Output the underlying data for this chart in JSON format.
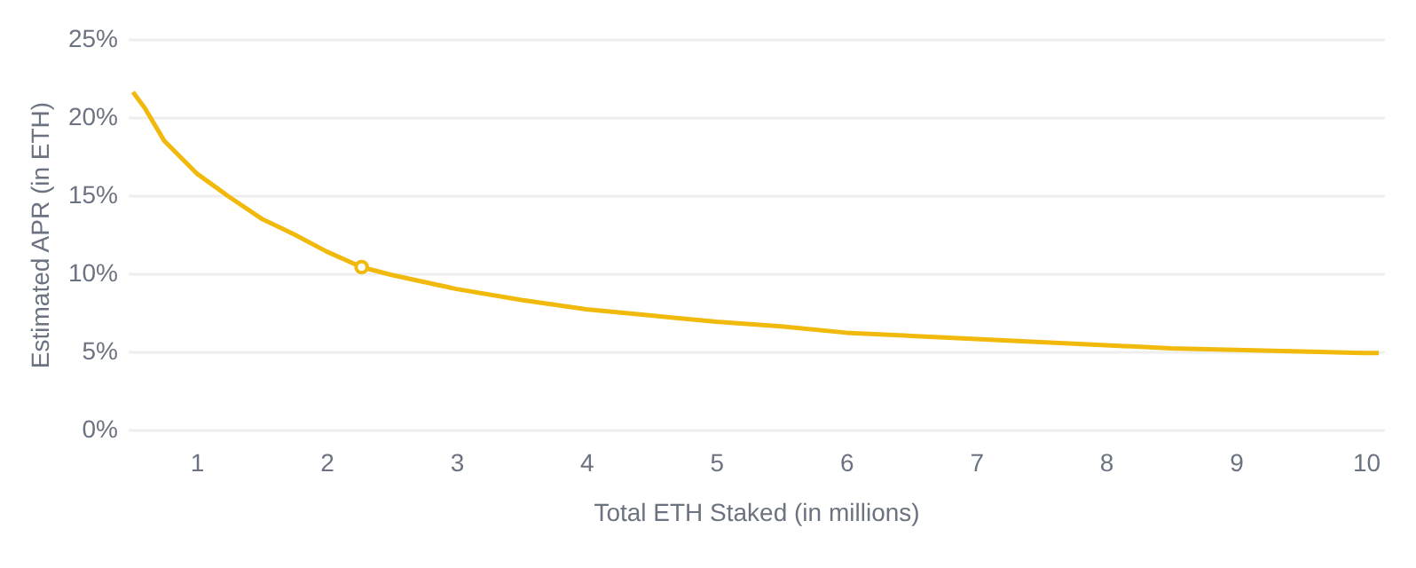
{
  "chart_data": {
    "type": "line",
    "xlabel": "Total ETH Staked (in millions)",
    "ylabel": "Estimated APR (in ETH)",
    "xlim": [
      0.47,
      10.14
    ],
    "xticks": [
      1,
      2,
      3,
      4,
      5,
      6,
      7,
      8,
      9,
      10
    ],
    "ylim": [
      0,
      25
    ],
    "yticks": [
      {
        "value": 0,
        "label": "0%"
      },
      {
        "value": 5,
        "label": "5%"
      },
      {
        "value": 10,
        "label": "10%"
      },
      {
        "value": 15,
        "label": "15%"
      },
      {
        "value": 20,
        "label": "20%"
      },
      {
        "value": 25,
        "label": "25%"
      }
    ],
    "grid": "y",
    "series": [
      {
        "color": "#f0b90b",
        "marker": "none",
        "line_style": "solid",
        "x": [
          0.51,
          0.6,
          0.75,
          1.0,
          1.25,
          1.5,
          1.75,
          2.0,
          2.27,
          2.5,
          3.0,
          3.5,
          4.0,
          4.5,
          5.0,
          5.5,
          6.0,
          6.5,
          7.0,
          7.5,
          8.0,
          8.5,
          9.0,
          9.5,
          10.0,
          10.1
        ],
        "values": [
          21.6,
          20.6,
          18.5,
          16.4,
          14.9,
          13.5,
          12.5,
          11.4,
          10.4,
          9.9,
          9.0,
          8.3,
          7.7,
          7.3,
          6.9,
          6.6,
          6.2,
          6.0,
          5.8,
          5.6,
          5.4,
          5.2,
          5.1,
          5.0,
          4.9,
          4.9
        ]
      },
      {
        "type": "scatter",
        "color": "#f0b90b",
        "marker": "circle",
        "x": [
          2.27
        ],
        "values": [
          10.4
        ]
      }
    ]
  }
}
